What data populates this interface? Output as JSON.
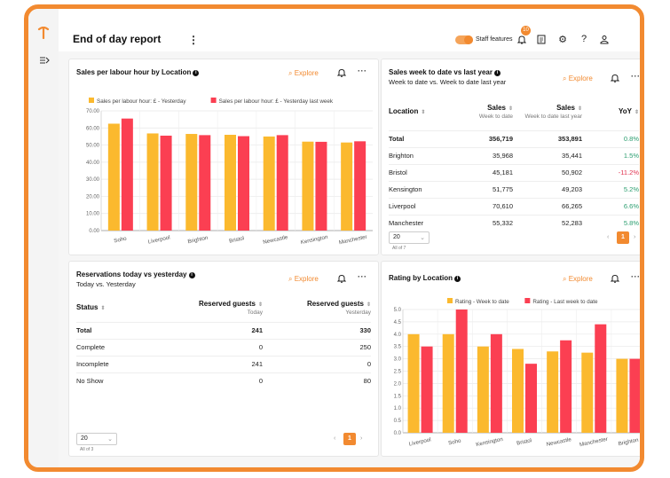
{
  "header": {
    "title": "End of day report",
    "staff_features_label": "Staff features",
    "notification_count": "10"
  },
  "colors": {
    "accent": "#f28a30",
    "series_a": "#fbb92e",
    "series_b": "#fb3f52"
  },
  "cards": {
    "sales_per_hour": {
      "title": "Sales per labour hour by Location",
      "explore": "Explore"
    },
    "sales_wtd": {
      "title": "Sales week to date vs last year",
      "subtitle": "Week to date vs. Week to date last year",
      "explore": "Explore",
      "columns": [
        {
          "label": "Location",
          "sub": ""
        },
        {
          "label": "Sales",
          "sub": "Week to date"
        },
        {
          "label": "Sales",
          "sub": "Week to date last year"
        },
        {
          "label": "YoY",
          "sub": ""
        }
      ],
      "rows": [
        {
          "location": "Total",
          "wtd": "356,719",
          "ly": "353,891",
          "yoy": "0.8%"
        },
        {
          "location": "Brighton",
          "wtd": "35,968",
          "ly": "35,441",
          "yoy": "1.5%"
        },
        {
          "location": "Bristol",
          "wtd": "45,181",
          "ly": "50,902",
          "yoy": "-11.2%"
        },
        {
          "location": "Kensington",
          "wtd": "51,775",
          "ly": "49,203",
          "yoy": "5.2%"
        },
        {
          "location": "Liverpool",
          "wtd": "70,610",
          "ly": "66,265",
          "yoy": "6.6%"
        },
        {
          "location": "Manchester",
          "wtd": "55,332",
          "ly": "52,283",
          "yoy": "5.8%"
        }
      ],
      "page_size": "20",
      "all_of": "All of 7",
      "page": "1"
    },
    "reservations": {
      "title": "Reservations today vs yesterday",
      "subtitle": "Today vs. Yesterday",
      "explore": "Explore",
      "columns": [
        {
          "label": "Status",
          "sub": ""
        },
        {
          "label": "Reserved guests",
          "sub": "Today"
        },
        {
          "label": "Reserved guests",
          "sub": "Yesterday"
        }
      ],
      "rows": [
        {
          "status": "Total",
          "today": "241",
          "yesterday": "330"
        },
        {
          "status": "Complete",
          "today": "0",
          "yesterday": "250"
        },
        {
          "status": "Incomplete",
          "today": "241",
          "yesterday": "0"
        },
        {
          "status": "No Show",
          "today": "0",
          "yesterday": "80"
        }
      ],
      "page_size": "20",
      "all_of": "All of 3",
      "page": "1"
    },
    "rating": {
      "title": "Rating by Location",
      "explore": "Explore"
    }
  },
  "chart_data": [
    {
      "type": "bar",
      "title": "Sales per labour hour by Location",
      "categories": [
        "Soho",
        "Liverpool",
        "Brighton",
        "Bristol",
        "Newcastle",
        "Kensington",
        "Manchester"
      ],
      "series": [
        {
          "name": "Sales per labour hour: £ - Yesterday",
          "values": [
            62.5,
            56.8,
            56.5,
            56,
            55,
            52,
            51.5
          ]
        },
        {
          "name": "Sales per labour hour: £ - Yesterday last week",
          "values": [
            65.5,
            55.5,
            55.8,
            55.2,
            55.8,
            51.9,
            52.2
          ]
        }
      ],
      "ylim": [
        0,
        70
      ],
      "yticks": [
        "0.00",
        "10.00",
        "20.00",
        "30.00",
        "40.00",
        "50.00",
        "60.00",
        "70.00"
      ],
      "legend": "top"
    },
    {
      "type": "bar",
      "title": "Rating by Location",
      "categories": [
        "Liverpool",
        "Soho",
        "Kensington",
        "Bristol",
        "Newcastle",
        "Manchester",
        "Brighton"
      ],
      "series": [
        {
          "name": "Rating - Week to date",
          "values": [
            4.0,
            4.0,
            3.5,
            3.4,
            3.3,
            3.25,
            3.0
          ]
        },
        {
          "name": "Rating - Last week to date",
          "values": [
            3.5,
            5.0,
            4.0,
            2.8,
            3.75,
            4.4,
            3.0
          ]
        }
      ],
      "ylim": [
        0,
        5
      ],
      "yticks": [
        "0.0",
        "0.5",
        "1.0",
        "1.5",
        "2.0",
        "2.5",
        "3.0",
        "3.5",
        "4.0",
        "4.5",
        "5.0"
      ],
      "legend": "top"
    }
  ]
}
